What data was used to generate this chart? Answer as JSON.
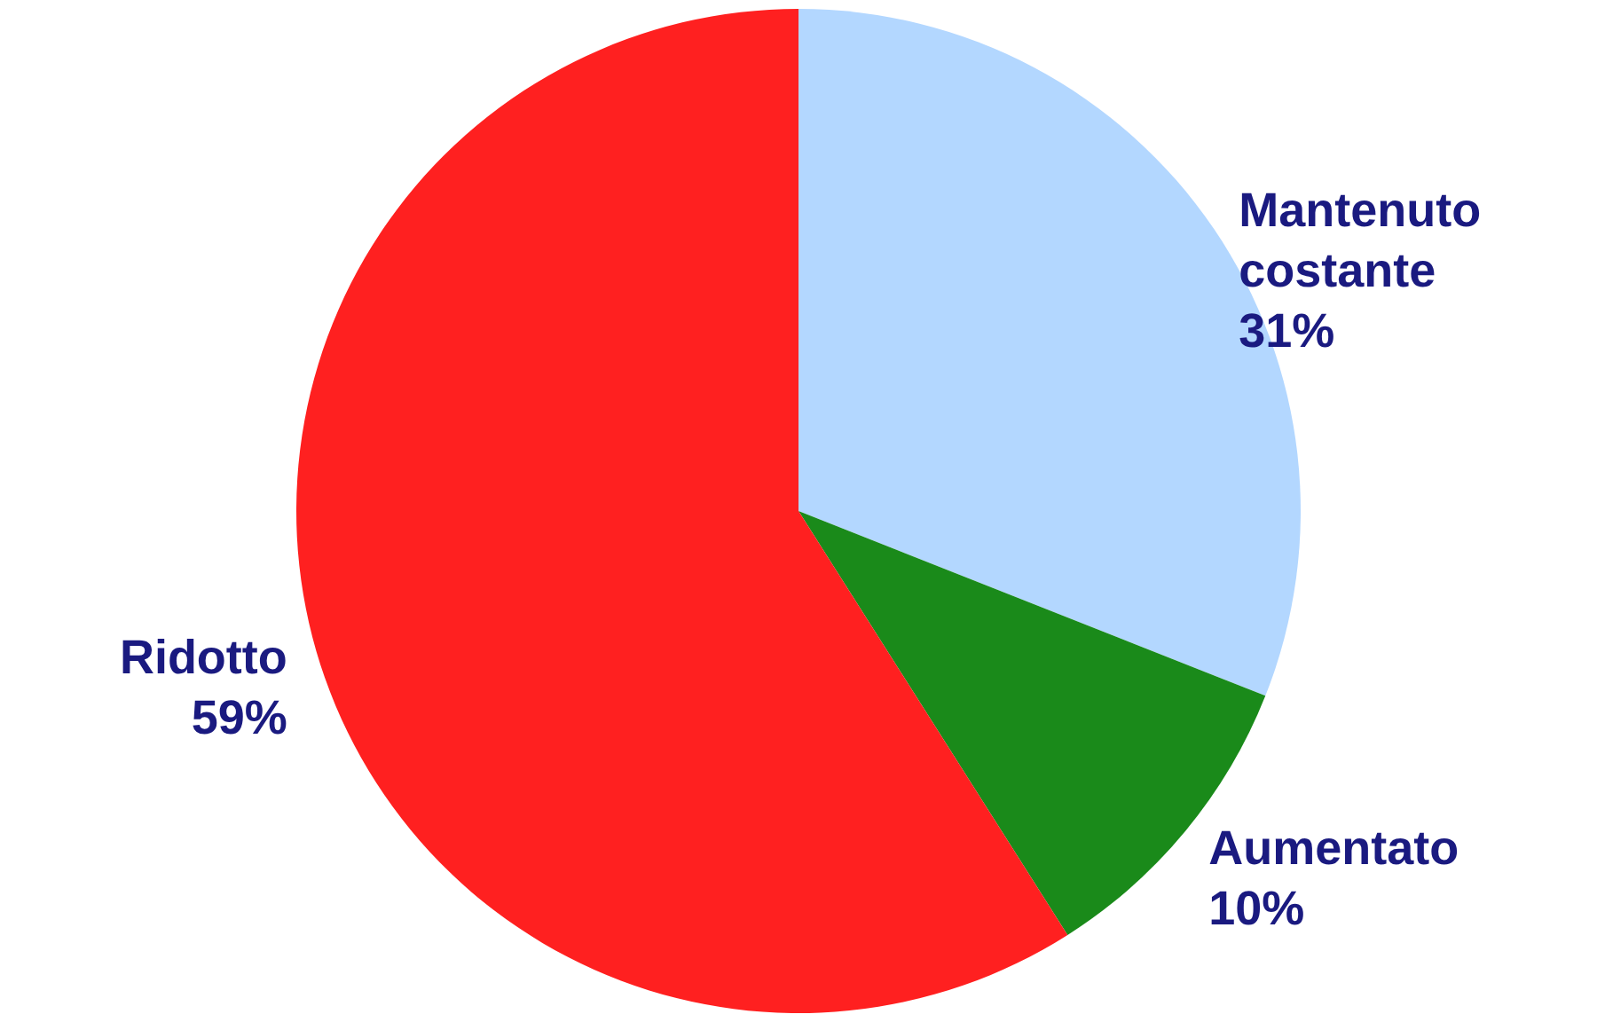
{
  "chart_data": {
    "type": "pie",
    "categories": [
      "Mantenuto costante",
      "Aumentato",
      "Ridotto"
    ],
    "values": [
      31,
      10,
      59
    ],
    "colors": [
      "#b3d7ff",
      "#1a8a1a",
      "#ff2020"
    ],
    "value_labels": [
      "31%",
      "10%",
      "59%"
    ],
    "legend": false
  }
}
